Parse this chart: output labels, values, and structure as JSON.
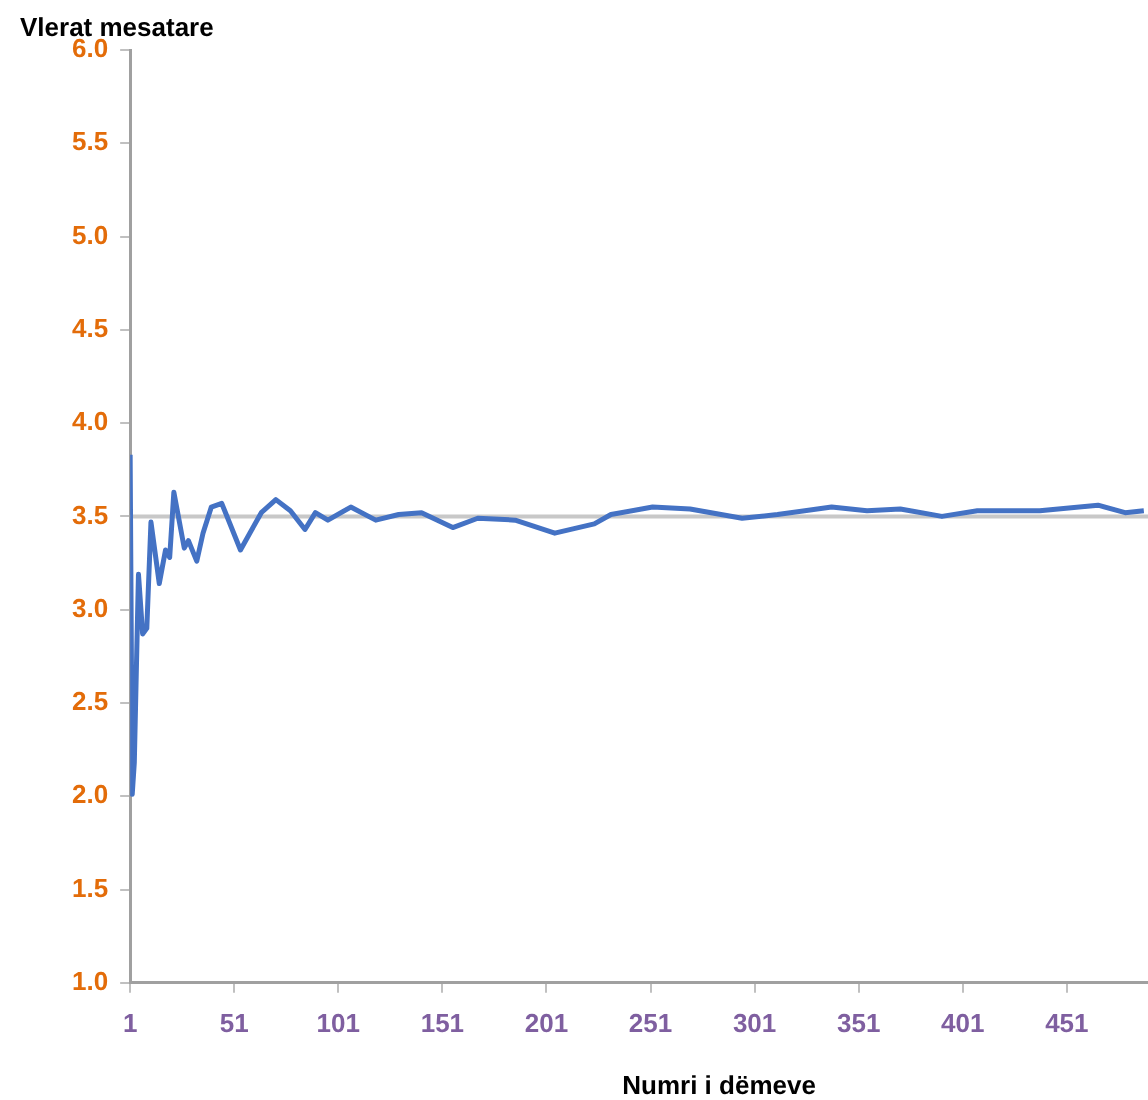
{
  "chart_data": {
    "type": "line",
    "xlabel": "Numri i dëmeve",
    "ylabel": "Vlerat mesatare",
    "xlim": [
      1,
      490
    ],
    "xticks": [
      1,
      51,
      101,
      151,
      201,
      251,
      301,
      351,
      401,
      451
    ],
    "ylim": [
      1,
      6
    ],
    "yticks": [
      {
        "value": 1,
        "label": "1.0"
      },
      {
        "value": 1.5,
        "label": "1.5"
      },
      {
        "value": 2,
        "label": "2.0"
      },
      {
        "value": 2.5,
        "label": "2.5"
      },
      {
        "value": 3,
        "label": "3.0"
      },
      {
        "value": 3.5,
        "label": "3.5"
      },
      {
        "value": 4,
        "label": "4.0"
      },
      {
        "value": 4.5,
        "label": "4.5"
      },
      {
        "value": 5,
        "label": "5.0"
      },
      {
        "value": 5.5,
        "label": "5.5"
      },
      {
        "value": 6,
        "label": "6.0"
      }
    ],
    "x": [
      1,
      2,
      3,
      5,
      7,
      9,
      11,
      15,
      18,
      20,
      22,
      27,
      29,
      33,
      36,
      40,
      45,
      54,
      64,
      71,
      78,
      85,
      90,
      96,
      107,
      119,
      130,
      141,
      156,
      168,
      186,
      205,
      224,
      232,
      252,
      270,
      295,
      312,
      338,
      355,
      371,
      391,
      408,
      438,
      466,
      479,
      488
    ],
    "series": [
      {
        "color": "#4472c4",
        "values": [
          3.83,
          2.01,
          2.18,
          3.19,
          2.87,
          2.9,
          3.47,
          3.14,
          3.32,
          3.28,
          3.63,
          3.33,
          3.37,
          3.26,
          3.41,
          3.55,
          3.57,
          3.32,
          3.52,
          3.59,
          3.53,
          3.43,
          3.52,
          3.48,
          3.55,
          3.48,
          3.51,
          3.52,
          3.44,
          3.49,
          3.48,
          3.41,
          3.46,
          3.51,
          3.55,
          3.54,
          3.49,
          3.51,
          3.55,
          3.53,
          3.54,
          3.5,
          3.53,
          3.53,
          3.56,
          3.52,
          3.53
        ]
      }
    ],
    "ref_lines": [
      {
        "axis": "y",
        "value": 3.5,
        "color": "#c8c8c8"
      }
    ],
    "grid": false,
    "legend": false,
    "marker": "none",
    "line_style": "solid"
  }
}
